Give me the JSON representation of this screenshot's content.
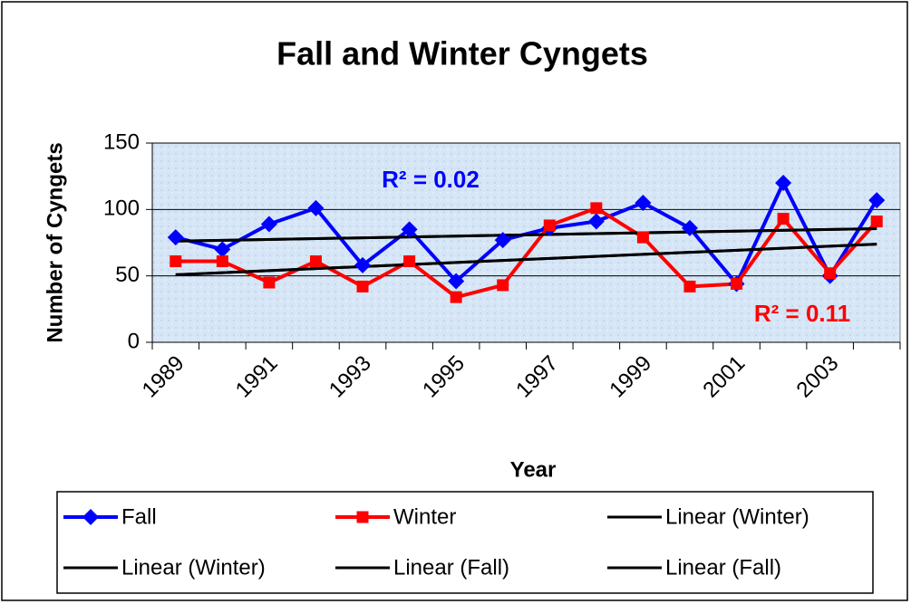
{
  "chart_data": {
    "type": "line",
    "title": "Fall and Winter Cyngets",
    "x_label": "Year",
    "y_label": "Number of Cyngets",
    "categories": [
      "1989",
      null,
      "1991",
      null,
      "1993",
      null,
      "1995",
      null,
      "1997",
      null,
      "1999",
      null,
      "2001",
      null,
      "2003",
      null
    ],
    "series": [
      {
        "name": "Fall",
        "color": "#0000ff",
        "marker": "diamond",
        "values": [
          79,
          70,
          89,
          101,
          58,
          85,
          46,
          77,
          86,
          91,
          105,
          86,
          44,
          120,
          50,
          107
        ]
      },
      {
        "name": "Winter",
        "color": "#ff0000",
        "marker": "square",
        "values": [
          61,
          61,
          45,
          61,
          42,
          61,
          34,
          43,
          88,
          101,
          79,
          42,
          44,
          93,
          52,
          91
        ]
      }
    ],
    "trendlines": [
      {
        "name": "Linear (Winter)",
        "series": "Winter",
        "color": "#000000"
      },
      {
        "name": "Linear (Winter)",
        "series": "Winter",
        "color": "#000000"
      },
      {
        "name": "Linear (Fall)",
        "series": "Fall",
        "color": "#000000"
      },
      {
        "name": "Linear (Fall)",
        "series": "Fall",
        "color": "#000000"
      }
    ],
    "annotations": [
      {
        "text": "R² = 0.02",
        "color": "#0000ff"
      },
      {
        "text": "R² = 0.11",
        "color": "#ff0000"
      }
    ],
    "ylim": [
      0,
      150
    ],
    "yticks": [
      0,
      50,
      100,
      150
    ],
    "grid": true
  }
}
